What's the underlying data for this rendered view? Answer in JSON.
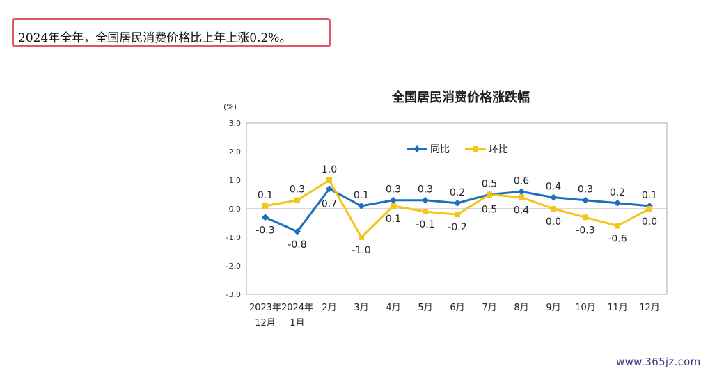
{
  "headline": "2024年全年，全国居民消费价格比上年上涨0.2%。",
  "watermark": "www.365jz.com",
  "colors": {
    "highlight_border": "#e0566b",
    "yoy": "#1f6fc0",
    "mom": "#f5c518"
  },
  "chart_data": {
    "type": "line",
    "title": "全国居民消费价格涨跌幅",
    "unit_label": "(%)",
    "ylim": [
      -3.0,
      3.0
    ],
    "yticks": [
      "3.0",
      "2.0",
      "1.0",
      "0.0",
      "-1.0",
      "-2.0",
      "-3.0"
    ],
    "categories": [
      [
        "2023年",
        "12月"
      ],
      [
        "2024年",
        "1月"
      ],
      [
        "2月"
      ],
      [
        "3月"
      ],
      [
        "4月"
      ],
      [
        "5月"
      ],
      [
        "6月"
      ],
      [
        "7月"
      ],
      [
        "8月"
      ],
      [
        "9月"
      ],
      [
        "10月"
      ],
      [
        "11月"
      ],
      [
        "12月"
      ]
    ],
    "legend_position": "top",
    "series": [
      {
        "name": "同比",
        "marker": "diamond",
        "values": [
          -0.3,
          -0.8,
          0.7,
          0.1,
          0.3,
          0.3,
          0.2,
          0.5,
          0.6,
          0.4,
          0.3,
          0.2,
          0.1
        ],
        "labels": [
          "-0.3",
          "-0.8",
          "0.7",
          "0.1",
          "0.3",
          "0.3",
          "0.2",
          "0.5",
          "0.6",
          "0.4",
          "0.3",
          "0.2",
          "0.1"
        ]
      },
      {
        "name": "环比",
        "marker": "square",
        "values": [
          0.1,
          0.3,
          1.0,
          -1.0,
          0.1,
          -0.1,
          -0.2,
          0.5,
          0.4,
          0.0,
          -0.3,
          -0.6,
          0.0
        ],
        "labels": [
          "0.1",
          "0.3",
          "1.0",
          "-1.0",
          "0.1",
          "-0.1",
          "-0.2",
          "0.5",
          "0.4",
          "0.0",
          "-0.3",
          "-0.6",
          "0.0"
        ]
      }
    ]
  }
}
